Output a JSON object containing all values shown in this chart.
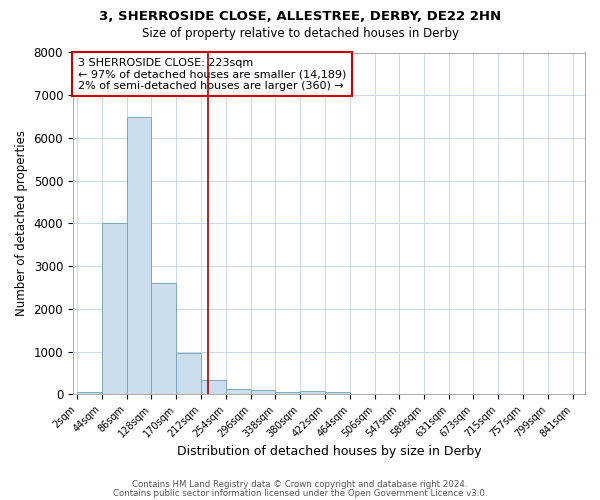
{
  "title1": "3, SHERROSIDE CLOSE, ALLESTREE, DERBY, DE22 2HN",
  "title2": "Size of property relative to detached houses in Derby",
  "xlabel": "Distribution of detached houses by size in Derby",
  "ylabel": "Number of detached properties",
  "bar_color": "#ccdded",
  "bar_edge_color": "#7aaabb",
  "bin_starts": [
    2,
    44,
    86,
    128,
    170,
    212,
    254,
    296,
    338,
    380,
    422,
    464,
    506,
    547,
    589,
    631,
    673,
    715,
    757,
    799
  ],
  "bin_width": 42,
  "bar_heights": [
    60,
    4000,
    6500,
    2600,
    975,
    325,
    125,
    100,
    50,
    75,
    50,
    0,
    0,
    0,
    0,
    0,
    0,
    0,
    0,
    0
  ],
  "property_size": 223,
  "red_line_color": "#aa0000",
  "annotation_line1": "3 SHERROSIDE CLOSE: 223sqm",
  "annotation_line2": "← 97% of detached houses are smaller (14,189)",
  "annotation_line3": "2% of semi-detached houses are larger (360) →",
  "annotation_box_color": "#cc0000",
  "ylim": [
    0,
    8000
  ],
  "yticks": [
    0,
    1000,
    2000,
    3000,
    4000,
    5000,
    6000,
    7000,
    8000
  ],
  "xtick_labels": [
    "2sqm",
    "44sqm",
    "86sqm",
    "128sqm",
    "170sqm",
    "212sqm",
    "254sqm",
    "296sqm",
    "338sqm",
    "380sqm",
    "422sqm",
    "464sqm",
    "506sqm",
    "547sqm",
    "589sqm",
    "631sqm",
    "673sqm",
    "715sqm",
    "757sqm",
    "799sqm",
    "841sqm"
  ],
  "xtick_positions": [
    2,
    44,
    86,
    128,
    170,
    212,
    254,
    296,
    338,
    380,
    422,
    464,
    506,
    547,
    589,
    631,
    673,
    715,
    757,
    799,
    841
  ],
  "footnote1": "Contains HM Land Registry data © Crown copyright and database right 2024.",
  "footnote2": "Contains public sector information licensed under the Open Government Licence v3.0.",
  "background_color": "#ffffff",
  "grid_color": "#c8d8e8"
}
